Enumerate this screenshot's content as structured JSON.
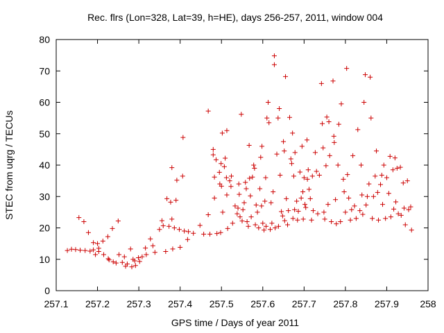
{
  "chart_data": {
    "type": "scatter",
    "title": "Rec. flrs (Lon=328, Lat=39, h=HE), days 256-257, 2011, window 004",
    "xlabel": "GPS time / Days of year 2011",
    "ylabel": "STEC from uqrg / TECUs",
    "xlim": [
      257.1,
      258.0
    ],
    "ylim": [
      0,
      80
    ],
    "xticks": [
      "257.1",
      "257.2",
      "257.3",
      "257.4",
      "257.5",
      "257.6",
      "257.7",
      "257.8",
      "257.9",
      "258"
    ],
    "yticks": [
      "0",
      "10",
      "20",
      "30",
      "40",
      "50",
      "60",
      "70",
      "80"
    ],
    "grid": false,
    "legend": "none",
    "marker": "plus",
    "color": "#cc0000",
    "points": [
      [
        257.127,
        12.8
      ],
      [
        257.137,
        13.2
      ],
      [
        257.147,
        13.1
      ],
      [
        257.155,
        23.3
      ],
      [
        257.158,
        12.9
      ],
      [
        257.167,
        22.0
      ],
      [
        257.17,
        12.8
      ],
      [
        257.178,
        18.5
      ],
      [
        257.182,
        12.6
      ],
      [
        257.19,
        15.3
      ],
      [
        257.19,
        13.0
      ],
      [
        257.195,
        11.5
      ],
      [
        257.2,
        15.0
      ],
      [
        257.203,
        13.5
      ],
      [
        257.203,
        12.5
      ],
      [
        257.213,
        15.8
      ],
      [
        257.215,
        11.5
      ],
      [
        257.225,
        17.2
      ],
      [
        257.226,
        10.2
      ],
      [
        257.228,
        9.8
      ],
      [
        257.236,
        19.8
      ],
      [
        257.238,
        9.2
      ],
      [
        257.245,
        8.8
      ],
      [
        257.25,
        22.2
      ],
      [
        257.252,
        11.5
      ],
      [
        257.26,
        9.0
      ],
      [
        257.265,
        10.8
      ],
      [
        257.268,
        7.8
      ],
      [
        257.272,
        8.5
      ],
      [
        257.28,
        13.3
      ],
      [
        257.283,
        7.6
      ],
      [
        257.286,
        10.0
      ],
      [
        257.29,
        9.5
      ],
      [
        257.292,
        8.0
      ],
      [
        257.299,
        10.5
      ],
      [
        257.302,
        9.3
      ],
      [
        257.308,
        10.8
      ],
      [
        257.316,
        13.6
      ],
      [
        257.318,
        11.5
      ],
      [
        257.328,
        16.5
      ],
      [
        257.334,
        14.3
      ],
      [
        257.339,
        12.2
      ],
      [
        257.35,
        19.5
      ],
      [
        257.356,
        22.3
      ],
      [
        257.359,
        20.7
      ],
      [
        257.365,
        12.5
      ],
      [
        257.368,
        29.3
      ],
      [
        257.373,
        20.5
      ],
      [
        257.377,
        28.2
      ],
      [
        257.38,
        39.2
      ],
      [
        257.38,
        22.8
      ],
      [
        257.382,
        13.3
      ],
      [
        257.386,
        20.0
      ],
      [
        257.39,
        28.8
      ],
      [
        257.392,
        35.2
      ],
      [
        257.398,
        19.5
      ],
      [
        257.4,
        13.8
      ],
      [
        257.406,
        36.5
      ],
      [
        257.407,
        48.8
      ],
      [
        257.41,
        19.0
      ],
      [
        257.418,
        16.3
      ],
      [
        257.42,
        18.8
      ],
      [
        257.432,
        18.3
      ],
      [
        257.448,
        20.8
      ],
      [
        257.457,
        18.0
      ],
      [
        257.468,
        57.2
      ],
      [
        257.468,
        24.2
      ],
      [
        257.472,
        18.0
      ],
      [
        257.48,
        45.0
      ],
      [
        257.48,
        43.3
      ],
      [
        257.483,
        36.2
      ],
      [
        257.483,
        29.5
      ],
      [
        257.487,
        41.7
      ],
      [
        257.489,
        18.2
      ],
      [
        257.495,
        37.7
      ],
      [
        257.496,
        34.0
      ],
      [
        257.498,
        18.5
      ],
      [
        257.499,
        40.5
      ],
      [
        257.5,
        33.3
      ],
      [
        257.502,
        50.2
      ],
      [
        257.503,
        25.0
      ],
      [
        257.507,
        39.5
      ],
      [
        257.509,
        42.2
      ],
      [
        257.512,
        36.0
      ],
      [
        257.513,
        30.5
      ],
      [
        257.513,
        51.0
      ],
      [
        257.515,
        19.8
      ],
      [
        257.52,
        35.0
      ],
      [
        257.523,
        33.2
      ],
      [
        257.524,
        36.5
      ],
      [
        257.527,
        21.5
      ],
      [
        257.533,
        27.0
      ],
      [
        257.538,
        24.5
      ],
      [
        257.54,
        26.3
      ],
      [
        257.542,
        34.0
      ],
      [
        257.543,
        30.7
      ],
      [
        257.545,
        23.5
      ],
      [
        257.548,
        56.2
      ],
      [
        257.55,
        22.2
      ],
      [
        257.552,
        25.8
      ],
      [
        257.555,
        28.0
      ],
      [
        257.558,
        34.5
      ],
      [
        257.56,
        32.5
      ],
      [
        257.562,
        22.0
      ],
      [
        257.565,
        20.5
      ],
      [
        257.567,
        46.3
      ],
      [
        257.568,
        35.8
      ],
      [
        257.57,
        30.2
      ],
      [
        257.572,
        23.5
      ],
      [
        257.575,
        36.2
      ],
      [
        257.578,
        40.0
      ],
      [
        257.58,
        39.0
      ],
      [
        257.582,
        21.0
      ],
      [
        257.584,
        27.3
      ],
      [
        257.587,
        25.0
      ],
      [
        257.59,
        20.0
      ],
      [
        257.593,
        32.5
      ],
      [
        257.595,
        42.5
      ],
      [
        257.597,
        27.0
      ],
      [
        257.598,
        46.0
      ],
      [
        257.6,
        21.5
      ],
      [
        257.603,
        19.3
      ],
      [
        257.605,
        28.5
      ],
      [
        257.607,
        36.0
      ],
      [
        257.608,
        20.5
      ],
      [
        257.61,
        55.0
      ],
      [
        257.613,
        60.0
      ],
      [
        257.615,
        53.5
      ],
      [
        257.618,
        19.5
      ],
      [
        257.62,
        28.0
      ],
      [
        257.622,
        21.5
      ],
      [
        257.625,
        31.5
      ],
      [
        257.628,
        74.8
      ],
      [
        257.628,
        72.0
      ],
      [
        257.63,
        20.0
      ],
      [
        257.634,
        43.5
      ],
      [
        257.637,
        55.0
      ],
      [
        257.638,
        20.5
      ],
      [
        257.64,
        58.0
      ],
      [
        257.642,
        36.8
      ],
      [
        257.645,
        25.2
      ],
      [
        257.648,
        23.8
      ],
      [
        257.65,
        47.5
      ],
      [
        257.652,
        44.5
      ],
      [
        257.653,
        22.3
      ],
      [
        257.655,
        68.2
      ],
      [
        257.657,
        29.3
      ],
      [
        257.66,
        21.0
      ],
      [
        257.662,
        25.5
      ],
      [
        257.665,
        55.2
      ],
      [
        257.668,
        42.0
      ],
      [
        257.67,
        40.5
      ],
      [
        257.672,
        50.2
      ],
      [
        257.673,
        23.0
      ],
      [
        257.675,
        36.5
      ],
      [
        257.677,
        25.8
      ],
      [
        257.678,
        44.0
      ],
      [
        257.682,
        28.5
      ],
      [
        257.684,
        22.5
      ],
      [
        257.686,
        25.3
      ],
      [
        257.69,
        37.8
      ],
      [
        257.693,
        29.5
      ],
      [
        257.695,
        46.0
      ],
      [
        257.697,
        31.5
      ],
      [
        257.698,
        22.8
      ],
      [
        257.7,
        36.0
      ],
      [
        257.702,
        27.5
      ],
      [
        257.704,
        26.5
      ],
      [
        257.707,
        48.0
      ],
      [
        257.708,
        35.5
      ],
      [
        257.71,
        38.5
      ],
      [
        257.712,
        32.3
      ],
      [
        257.715,
        29.3
      ],
      [
        257.718,
        22.5
      ],
      [
        257.72,
        36.5
      ],
      [
        257.722,
        25.5
      ],
      [
        257.727,
        44.0
      ],
      [
        257.73,
        38.0
      ],
      [
        257.733,
        24.5
      ],
      [
        257.737,
        36.8
      ],
      [
        257.742,
        66.0
      ],
      [
        257.744,
        53.2
      ],
      [
        257.746,
        45.5
      ],
      [
        257.748,
        25.0
      ],
      [
        257.75,
        22.8
      ],
      [
        257.753,
        39.8
      ],
      [
        257.755,
        55.3
      ],
      [
        257.758,
        27.5
      ],
      [
        257.76,
        53.8
      ],
      [
        257.762,
        43.0
      ],
      [
        257.766,
        22.0
      ],
      [
        257.77,
        66.8
      ],
      [
        257.772,
        49.2
      ],
      [
        257.773,
        47.2
      ],
      [
        257.776,
        29.0
      ],
      [
        257.778,
        21.3
      ],
      [
        257.782,
        40.0
      ],
      [
        257.784,
        53.0
      ],
      [
        257.788,
        22.0
      ],
      [
        257.79,
        59.5
      ],
      [
        257.795,
        35.5
      ],
      [
        257.797,
        31.5
      ],
      [
        257.8,
        25.0
      ],
      [
        257.803,
        70.8
      ],
      [
        257.805,
        37.0
      ],
      [
        257.808,
        29.5
      ],
      [
        257.812,
        22.5
      ],
      [
        257.815,
        25.8
      ],
      [
        257.818,
        43.0
      ],
      [
        257.822,
        27.0
      ],
      [
        257.826,
        23.0
      ],
      [
        257.83,
        51.3
      ],
      [
        257.835,
        25.5
      ],
      [
        257.838,
        40.0
      ],
      [
        257.84,
        30.5
      ],
      [
        257.842,
        24.3
      ],
      [
        257.845,
        60.0
      ],
      [
        257.848,
        68.8
      ],
      [
        257.85,
        27.3
      ],
      [
        257.853,
        30.0
      ],
      [
        257.857,
        34.0
      ],
      [
        257.86,
        68.0
      ],
      [
        257.862,
        55.0
      ],
      [
        257.865,
        23.0
      ],
      [
        257.868,
        30.0
      ],
      [
        257.872,
        36.5
      ],
      [
        257.875,
        44.5
      ],
      [
        257.878,
        31.3
      ],
      [
        257.88,
        22.5
      ],
      [
        257.885,
        33.8
      ],
      [
        257.888,
        36.8
      ],
      [
        257.89,
        27.5
      ],
      [
        257.893,
        40.0
      ],
      [
        257.897,
        23.0
      ],
      [
        257.9,
        36.0
      ],
      [
        257.905,
        31.0
      ],
      [
        257.908,
        42.8
      ],
      [
        257.91,
        23.5
      ],
      [
        257.915,
        38.5
      ],
      [
        257.917,
        26.0
      ],
      [
        257.92,
        42.3
      ],
      [
        257.922,
        28.3
      ],
      [
        257.925,
        39.0
      ],
      [
        257.928,
        24.5
      ],
      [
        257.933,
        39.3
      ],
      [
        257.935,
        24.0
      ],
      [
        257.94,
        34.3
      ],
      [
        257.942,
        26.3
      ],
      [
        257.945,
        21.0
      ],
      [
        257.95,
        35.0
      ],
      [
        257.953,
        25.8
      ],
      [
        257.958,
        26.7
      ],
      [
        257.96,
        19.3
      ]
    ]
  }
}
